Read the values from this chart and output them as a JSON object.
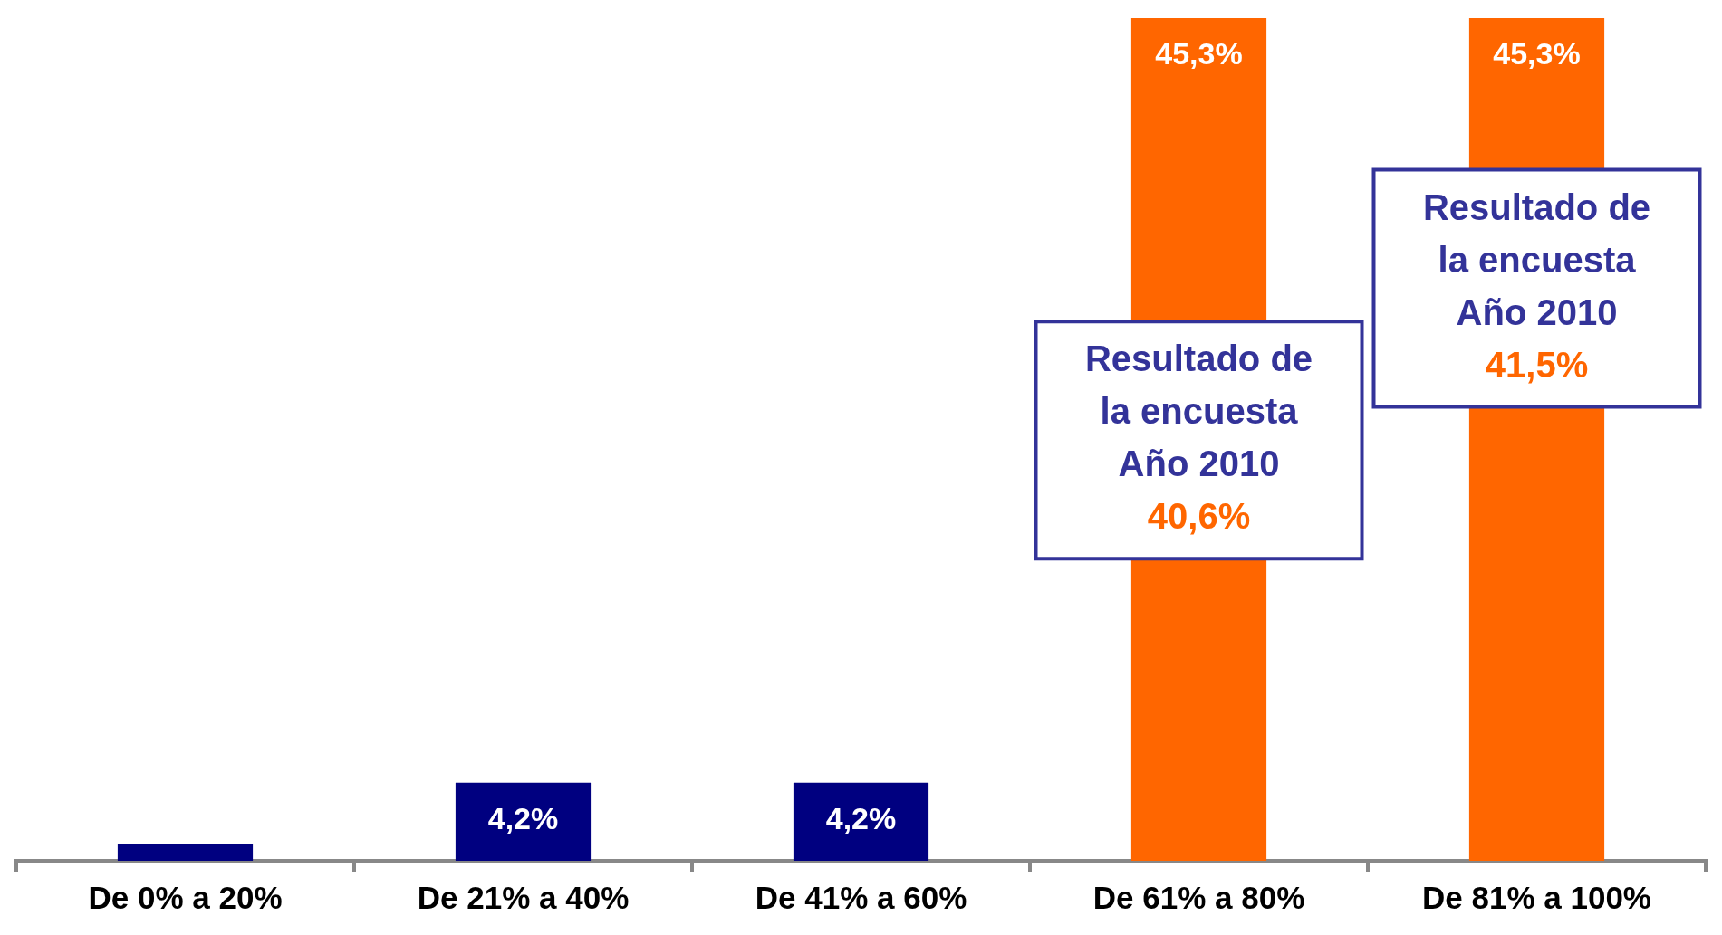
{
  "chart_data": {
    "type": "bar",
    "categories": [
      "De 0% a 20%",
      "De 21% a 40%",
      "De 41% a 60%",
      "De 61% a 80%",
      "De 81% a 100%"
    ],
    "values": [
      0.9,
      4.2,
      4.2,
      45.3,
      45.3
    ],
    "colors": [
      "#000080",
      "#000080",
      "#000080",
      "#ff6600",
      "#ff6600"
    ],
    "value_labels": [
      null,
      "4,2%",
      "4,2%",
      "45,3%",
      "45,3%"
    ],
    "annotations": [
      "Resultado de\nla encuesta\nAño 2010\n40,6%",
      "Resultado de\nla encuesta\nAño 2010\n41,5%"
    ],
    "grid": false,
    "legend": false
  }
}
